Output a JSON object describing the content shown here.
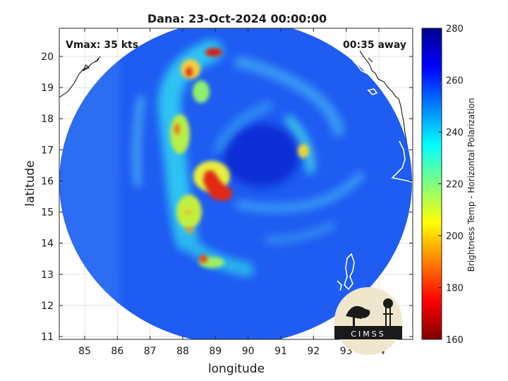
{
  "title": "Dana: 23-Oct-2024 00:00:00",
  "vmax_label": "Vmax: 35 kts",
  "time_away_label": "00:35 away",
  "x_axis": {
    "label": "longitude",
    "ticks": [
      "85",
      "86",
      "87",
      "88",
      "89",
      "90",
      "91",
      "92",
      "93",
      "94"
    ]
  },
  "y_axis": {
    "label": "latitude",
    "ticks": [
      "20",
      "19",
      "18",
      "17",
      "16",
      "15",
      "14",
      "13",
      "12",
      "11"
    ]
  },
  "colorbar": {
    "label": "Brightness Temp - Horizontal Polarization",
    "ticks": [
      "280",
      "260",
      "240",
      "220",
      "200",
      "180",
      "160"
    ],
    "range": [
      160,
      280
    ],
    "colormap": "jet"
  },
  "logo": {
    "text": "CIMSS"
  },
  "colors": {
    "land_outline": "#ffffff",
    "coast_outline": "#000000"
  }
}
